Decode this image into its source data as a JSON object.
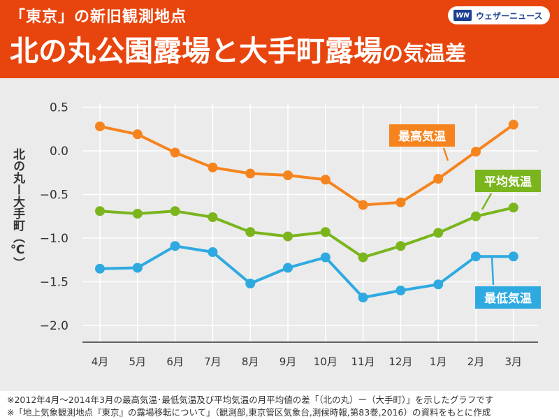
{
  "header": {
    "subtitle": "「東京」の新旧観測地点",
    "title_main": "北の丸公園露場と大手町露場",
    "title_suffix": "の気温差",
    "brand_logo": "WN",
    "brand_name": "ウェザーニュース",
    "bg_color": "#e8450e"
  },
  "chart_data": {
    "type": "line",
    "categories": [
      "4月",
      "5月",
      "6月",
      "7月",
      "8月",
      "9月",
      "10月",
      "11月",
      "12月",
      "1月",
      "2月",
      "3月"
    ],
    "ylabel": "北の丸ー大手町（℃）",
    "ylim": [
      -2.2,
      0.6
    ],
    "yticks": [
      0.5,
      0.0,
      -0.5,
      -1.0,
      -1.5,
      -2.0
    ],
    "ytick_labels": [
      "0.5",
      "0.0",
      "−0.5",
      "−1.0",
      "−1.5",
      "−2.0"
    ],
    "grid": true,
    "series": [
      {
        "name": "最高気温",
        "color": "#f5841f",
        "values": [
          0.28,
          0.19,
          -0.02,
          -0.19,
          -0.26,
          -0.28,
          -0.33,
          -0.62,
          -0.59,
          -0.32,
          -0.01,
          0.3
        ]
      },
      {
        "name": "平均気温",
        "color": "#7ab51d",
        "values": [
          -0.69,
          -0.72,
          -0.69,
          -0.76,
          -0.93,
          -0.98,
          -0.93,
          -1.22,
          -1.09,
          -0.94,
          -0.75,
          -0.65
        ]
      },
      {
        "name": "最低気温",
        "color": "#2eaae1",
        "values": [
          -1.35,
          -1.34,
          -1.09,
          -1.16,
          -1.52,
          -1.34,
          -1.22,
          -1.68,
          -1.6,
          -1.53,
          -1.21,
          -1.21
        ]
      }
    ]
  },
  "footnotes": [
    "※2012年4月〜2014年3月の最高気温･最低気温及び平均気温の月平均値の差「（北の丸）ー（大手町）」を示したグラフです",
    "※「地上気象観測地点『東京』の露場移転について」（観測部,東京管区気象台,測候時報,第83巻,2016）の資料をもとに作成"
  ]
}
